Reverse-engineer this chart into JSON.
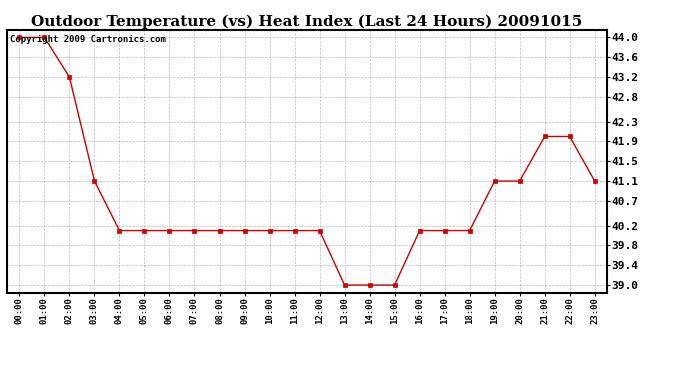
{
  "title": "Outdoor Temperature (vs) Heat Index (Last 24 Hours) 20091015",
  "copyright_text": "Copyright 2009 Cartronics.com",
  "x_labels": [
    "00:00",
    "01:00",
    "02:00",
    "03:00",
    "04:00",
    "05:00",
    "06:00",
    "07:00",
    "08:00",
    "09:00",
    "10:00",
    "11:00",
    "12:00",
    "13:00",
    "14:00",
    "15:00",
    "16:00",
    "17:00",
    "18:00",
    "19:00",
    "20:00",
    "21:00",
    "22:00",
    "23:00"
  ],
  "y_values": [
    44.0,
    44.0,
    43.2,
    41.1,
    40.1,
    40.1,
    40.1,
    40.1,
    40.1,
    40.1,
    40.1,
    40.1,
    40.1,
    39.0,
    39.0,
    39.0,
    40.1,
    40.1,
    40.1,
    41.1,
    41.1,
    42.0,
    42.0,
    41.1
  ],
  "line_color": "#cc0000",
  "marker_color": "#cc0000",
  "background_color": "#ffffff",
  "grid_color": "#aaaaaa",
  "ylim_min": 38.85,
  "ylim_max": 44.15,
  "yticks": [
    39.0,
    39.4,
    39.8,
    40.2,
    40.7,
    41.1,
    41.5,
    41.9,
    42.3,
    42.8,
    43.2,
    43.6,
    44.0
  ],
  "title_fontsize": 11,
  "copyright_fontsize": 6.5,
  "xtick_fontsize": 6.5,
  "ytick_fontsize": 8
}
